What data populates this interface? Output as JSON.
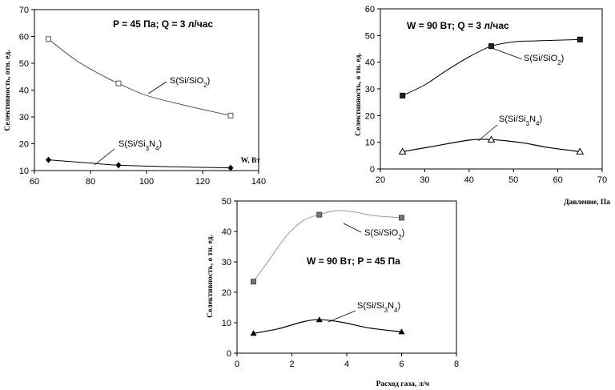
{
  "chart_data": [
    {
      "type": "line",
      "title": "P = 45 Па; Q = 3 л/час",
      "xlabel": "W, Вт",
      "ylabel": "Селективность, отн. ед.",
      "xlim": [
        60,
        140
      ],
      "ylim": [
        10,
        70
      ],
      "xticks": [
        60,
        80,
        100,
        120,
        140
      ],
      "yticks": [
        10,
        20,
        30,
        40,
        50,
        60,
        70
      ],
      "grid": false,
      "series": [
        {
          "name": "S(Si/SiO2)",
          "marker": "open-square",
          "color": "#555555",
          "x": [
            65,
            90,
            130
          ],
          "y": [
            59,
            42.5,
            30.5
          ],
          "curve": [
            [
              65,
              59
            ],
            [
              75,
              51
            ],
            [
              85,
              45
            ],
            [
              90,
              42.5
            ],
            [
              100,
              38
            ],
            [
              115,
              34
            ],
            [
              130,
              30.5
            ]
          ]
        },
        {
          "name": "S(Si/Si3N4)",
          "marker": "filled-diamond",
          "color": "#000000",
          "x": [
            65,
            90,
            130
          ],
          "y": [
            14,
            12,
            11
          ],
          "curve": [
            [
              65,
              14
            ],
            [
              80,
              12.8
            ],
            [
              90,
              12
            ],
            [
              110,
              11.4
            ],
            [
              130,
              11
            ]
          ]
        }
      ]
    },
    {
      "type": "line",
      "title": "W = 90 Вт; Q = 3 л/час",
      "xlabel": "Давление, Па",
      "ylabel": "Селективность, о тн. ед.",
      "xlim": [
        20,
        70
      ],
      "ylim": [
        0,
        60
      ],
      "xticks": [
        20,
        30,
        40,
        50,
        60,
        70
      ],
      "yticks": [
        0,
        10,
        20,
        30,
        40,
        50,
        60
      ],
      "grid": false,
      "series": [
        {
          "name": "S(Si/SiO2)",
          "marker": "filled-square",
          "color": "#000000",
          "x": [
            25,
            45,
            65
          ],
          "y": [
            27.5,
            46,
            48.5
          ],
          "curve": [
            [
              25,
              27.5
            ],
            [
              30,
              31.5
            ],
            [
              35,
              37
            ],
            [
              40,
              42
            ],
            [
              45,
              46
            ],
            [
              50,
              47.6
            ],
            [
              55,
              48
            ],
            [
              65,
              48.5
            ]
          ]
        },
        {
          "name": "S(Si/Si3N4)",
          "marker": "open-triangle",
          "color": "#000000",
          "x": [
            25,
            45,
            65
          ],
          "y": [
            6.5,
            11,
            6.5
          ],
          "curve": [
            [
              25,
              6.5
            ],
            [
              32,
              8.5
            ],
            [
              40,
              10.8
            ],
            [
              45,
              11
            ],
            [
              52,
              9.8
            ],
            [
              58,
              8
            ],
            [
              65,
              6.5
            ]
          ]
        }
      ]
    },
    {
      "type": "line",
      "title": "W = 90 Вт; P = 45 Па",
      "xlabel": "Расход газа, л/ч",
      "ylabel": "Селективность, о тн. ед.",
      "xlim": [
        0,
        8
      ],
      "ylim": [
        0,
        50
      ],
      "xticks": [
        0,
        2,
        4,
        6,
        8
      ],
      "yticks": [
        0,
        10,
        20,
        30,
        40,
        50
      ],
      "grid": false,
      "series": [
        {
          "name": "S(Si/SiO2)",
          "marker": "filled-square-gray",
          "color": "#999999",
          "x": [
            0.6,
            3,
            6
          ],
          "y": [
            23.5,
            45.5,
            44.5
          ],
          "curve": [
            [
              0.6,
              23.5
            ],
            [
              1.2,
              31
            ],
            [
              1.8,
              38.5
            ],
            [
              2.4,
              43.5
            ],
            [
              3,
              45.5
            ],
            [
              3.6,
              46.8
            ],
            [
              4.2,
              46.5
            ],
            [
              5,
              45.2
            ],
            [
              6,
              44.5
            ]
          ]
        },
        {
          "name": "S(Si/Si3N4)",
          "marker": "filled-triangle",
          "color": "#000000",
          "x": [
            0.6,
            3,
            6
          ],
          "y": [
            6.5,
            11,
            7
          ],
          "curve": [
            [
              0.6,
              6.5
            ],
            [
              1.5,
              8
            ],
            [
              2.4,
              10.3
            ],
            [
              3,
              11
            ],
            [
              3.8,
              10.2
            ],
            [
              4.8,
              8.3
            ],
            [
              6,
              7
            ]
          ]
        }
      ]
    }
  ]
}
